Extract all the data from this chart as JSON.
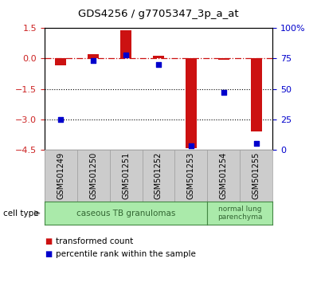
{
  "title": "GDS4256 / g7705347_3p_a_at",
  "samples": [
    "GSM501249",
    "GSM501250",
    "GSM501251",
    "GSM501252",
    "GSM501253",
    "GSM501254",
    "GSM501255"
  ],
  "transformed_count": [
    -0.35,
    0.2,
    1.4,
    0.12,
    -4.45,
    -0.05,
    -3.6
  ],
  "percentile_rank": [
    25,
    73,
    78,
    70,
    3,
    47,
    5
  ],
  "ylim_left": [
    -4.5,
    1.5
  ],
  "ylim_right": [
    0,
    100
  ],
  "left_yticks": [
    1.5,
    0,
    -1.5,
    -3,
    -4.5
  ],
  "right_yticks": [
    100,
    75,
    50,
    25,
    0
  ],
  "dotted_lines": [
    -1.5,
    -3
  ],
  "bar_color": "#CC1111",
  "dot_color": "#0000CC",
  "bar_width": 0.35,
  "dot_size": 25,
  "group1_count": 5,
  "group2_count": 2,
  "group1_label": "caseous TB granulomas",
  "group2_label": "normal lung\nparenchyma",
  "group1_color": "#AAEAAA",
  "group2_color": "#AAEAAA",
  "cell_type_label": "cell type",
  "legend1_label": "transformed count",
  "legend2_label": "percentile rank within the sample",
  "legend1_color": "#CC1111",
  "legend2_color": "#0000CC",
  "tick_box_color": "#CCCCCC",
  "tick_box_edge": "#999999"
}
